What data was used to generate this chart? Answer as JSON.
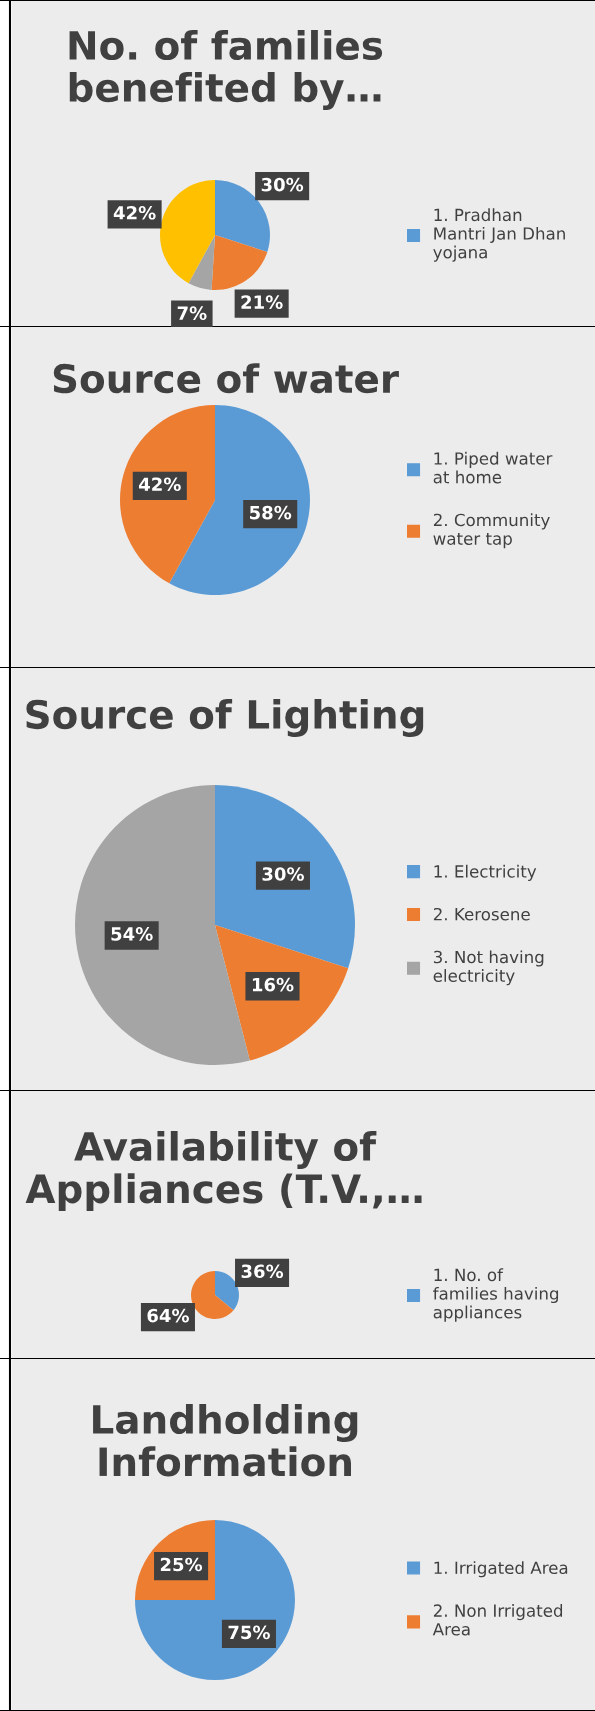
{
  "chart_data": [
    {
      "type": "pie",
      "title": "No. of families\nbenefited by…",
      "categories": [
        "1. Pradhan\nMantri Jan Dhan\nyojana",
        null,
        null,
        null
      ],
      "values": [
        30,
        21,
        7,
        42
      ],
      "value_labels": [
        "30%",
        "21%",
        "7%",
        "42%"
      ],
      "colors": [
        "#5b9bd5",
        "#ed7d31",
        "#a5a5a5",
        "#ffc000"
      ],
      "legend": "right"
    },
    {
      "type": "pie",
      "title": "Source of water",
      "categories": [
        "1. Piped water\nat home",
        "2. Community\nwater tap"
      ],
      "values": [
        58,
        42
      ],
      "value_labels": [
        "58%",
        "42%"
      ],
      "colors": [
        "#5b9bd5",
        "#ed7d31"
      ],
      "legend": "right"
    },
    {
      "type": "pie",
      "title": "Source of Lighting",
      "categories": [
        "1. Electricity",
        "2. Kerosene",
        "3. Not having\nelectricity"
      ],
      "values": [
        30,
        16,
        54
      ],
      "value_labels": [
        "30%",
        "16%",
        "54%"
      ],
      "colors": [
        "#5b9bd5",
        "#ed7d31",
        "#a5a5a5"
      ],
      "legend": "right"
    },
    {
      "type": "pie",
      "title": "Availability of\nAppliances (T.V.,…",
      "categories": [
        "1. No. of\nfamilies having\nappliances",
        null
      ],
      "values": [
        36,
        64
      ],
      "value_labels": [
        "36%",
        "64%"
      ],
      "colors": [
        "#5b9bd5",
        "#ed7d31"
      ],
      "legend": "right"
    },
    {
      "type": "pie",
      "title": "Landholding\nInformation",
      "categories": [
        "1. Irrigated Area",
        "2. Non Irrigated\nArea"
      ],
      "values": [
        75,
        25
      ],
      "value_labels": [
        "75%",
        "25%"
      ],
      "colors": [
        "#5b9bd5",
        "#ed7d31"
      ],
      "legend": "right"
    }
  ]
}
